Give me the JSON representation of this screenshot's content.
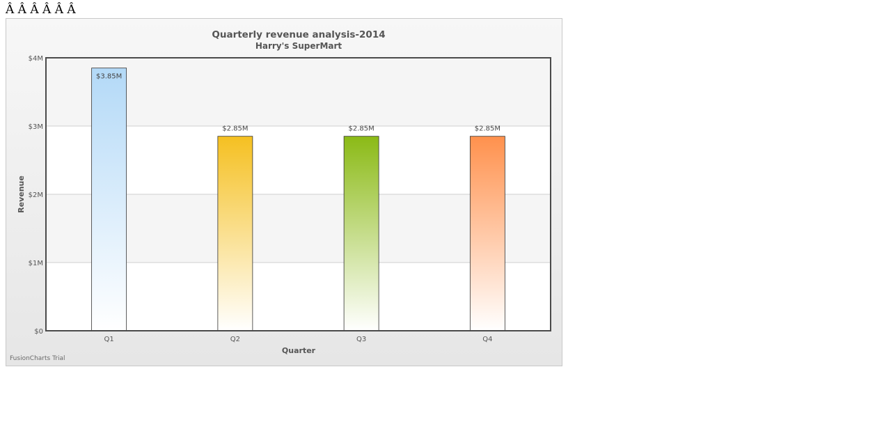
{
  "page": {
    "header_text": "Â Â  Â Â  Â Â"
  },
  "chart_data": {
    "type": "bar",
    "title": "Quarterly revenue analysis-2014",
    "subtitle": "Harry's SuperMart",
    "xlabel": "Quarter",
    "ylabel": "Revenue",
    "categories": [
      "Q1",
      "Q2",
      "Q3",
      "Q4"
    ],
    "values": [
      3.85,
      2.85,
      2.85,
      2.85
    ],
    "value_labels": [
      "$3.85M",
      "$2.85M",
      "$2.85M",
      "$2.85M"
    ],
    "ylim": [
      0,
      4
    ],
    "yticks": [
      0,
      1,
      2,
      3,
      4
    ],
    "ytick_labels": [
      "$0",
      "$1M",
      "$2M",
      "$3M",
      "$4M"
    ],
    "grid": true,
    "colors": [
      "#b3d9f7",
      "#f5c021",
      "#8bba16",
      "#ff914d"
    ],
    "watermark": "FusionCharts Trial"
  }
}
